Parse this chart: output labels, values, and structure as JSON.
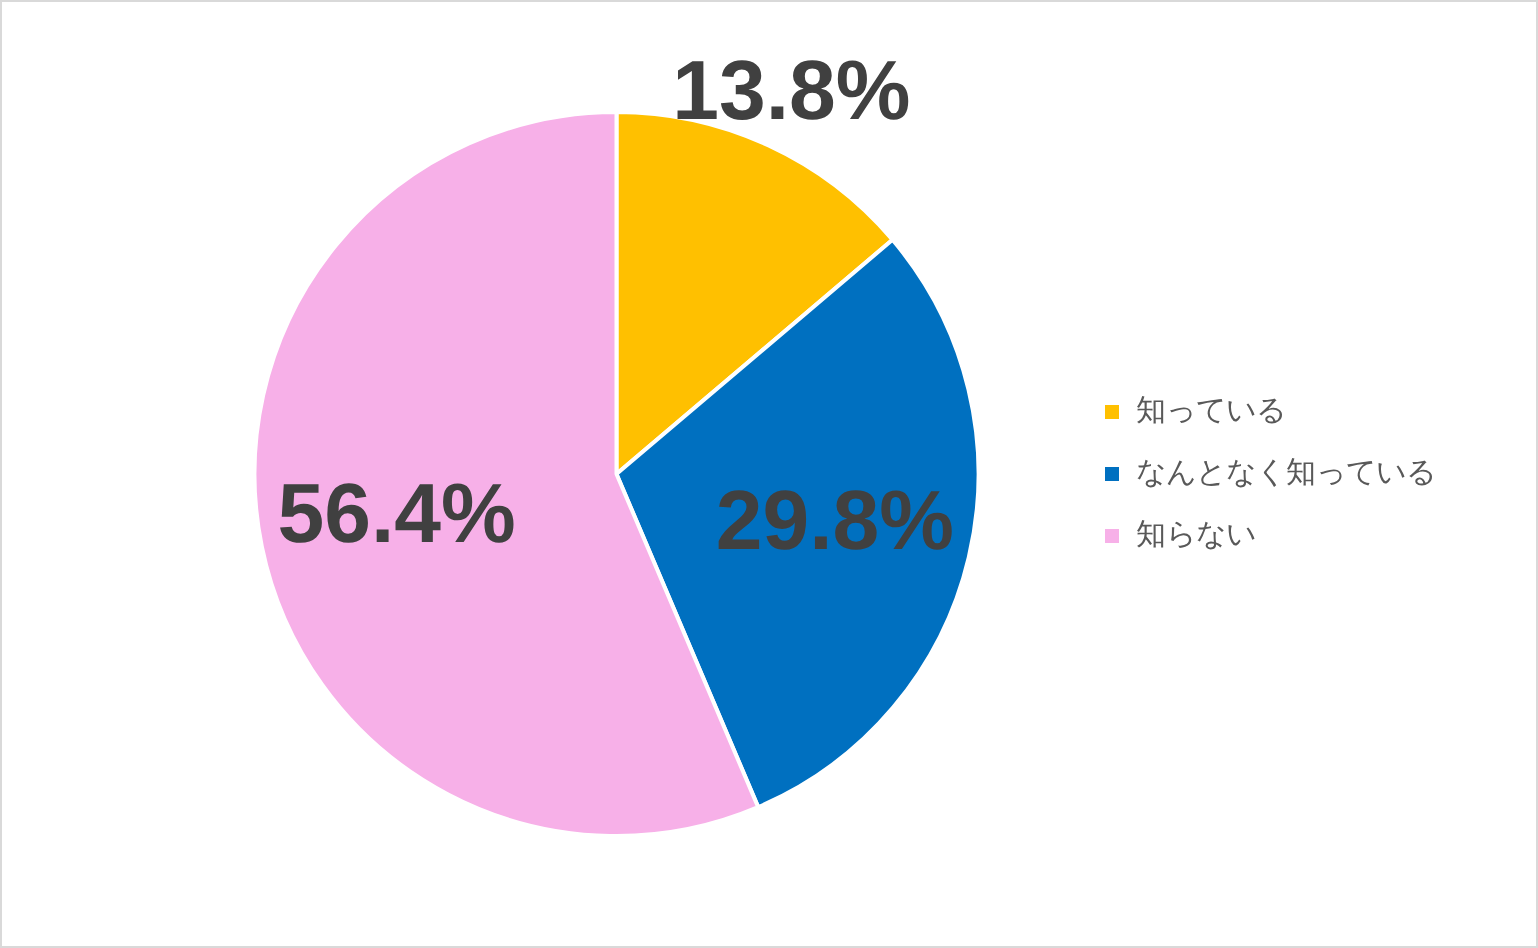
{
  "chart_data": {
    "type": "pie",
    "categories": [
      "知っている",
      "なんとなく知っている",
      "知らない"
    ],
    "values": [
      13.8,
      29.8,
      56.4
    ],
    "colors": [
      "#ffc000",
      "#0070c0",
      "#f7b0e8"
    ],
    "value_labels": [
      "13.8%",
      "29.8%",
      "56.4%"
    ],
    "legend": "right"
  }
}
